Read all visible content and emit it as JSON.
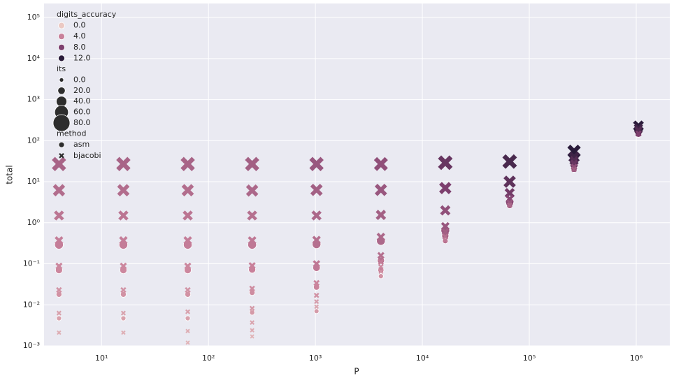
{
  "chart_data": {
    "type": "scatter",
    "x_label": "P",
    "y_label": "total",
    "xscale": "log",
    "yscale": "log",
    "grid": true,
    "xlim": [
      2.9,
      2060000
    ],
    "ylim": [
      0.001,
      220000
    ],
    "xticks": [
      {
        "value": 10,
        "label": "10¹"
      },
      {
        "value": 100,
        "label": "10²"
      },
      {
        "value": 1000,
        "label": "10³"
      },
      {
        "value": 10000,
        "label": "10⁴"
      },
      {
        "value": 100000,
        "label": "10⁵"
      },
      {
        "value": 1000000,
        "label": "10⁶"
      }
    ],
    "yticks": [
      {
        "value": 0.001,
        "label": "10⁻³"
      },
      {
        "value": 0.01,
        "label": "10⁻²"
      },
      {
        "value": 0.1,
        "label": "10⁻¹"
      },
      {
        "value": 1,
        "label": "10⁰"
      },
      {
        "value": 10,
        "label": "10¹"
      },
      {
        "value": 100,
        "label": "10²"
      },
      {
        "value": 1000,
        "label": "10³"
      },
      {
        "value": 10000,
        "label": "10⁴"
      },
      {
        "value": 100000,
        "label": "10⁵"
      }
    ],
    "legend": {
      "position": "upper left",
      "hue_title": "digits_accuracy",
      "hue_levels": [
        {
          "value": 0,
          "label": "0.0"
        },
        {
          "value": 4,
          "label": "4.0"
        },
        {
          "value": 8,
          "label": "8.0"
        },
        {
          "value": 12,
          "label": "12.0"
        }
      ],
      "hue_colors": [
        "#ebc9c3",
        "#c8809a",
        "#7d3f6e",
        "#2a1b3a"
      ],
      "size_title": "its",
      "size_levels": [
        {
          "value": 0,
          "label": "0.0"
        },
        {
          "value": 20,
          "label": "20.0"
        },
        {
          "value": 40,
          "label": "40.0"
        },
        {
          "value": 60,
          "label": "60.0"
        },
        {
          "value": 80,
          "label": "80.0"
        }
      ],
      "style_title": "method"
    },
    "series": [
      {
        "name": "asm",
        "marker": "o",
        "x": [
          4,
          4,
          4,
          4,
          16,
          16,
          16,
          16,
          64,
          64,
          64,
          64,
          256,
          256,
          256,
          256,
          1024,
          1024,
          1024,
          1024,
          4096,
          4096,
          4096,
          4096,
          16384,
          16384,
          16384,
          65536,
          65536,
          262144,
          262144,
          1048576,
          1048576
        ],
        "y": [
          0.29,
          0.07,
          0.018,
          0.0047,
          0.29,
          0.07,
          0.018,
          0.0047,
          0.29,
          0.07,
          0.018,
          0.0047,
          0.29,
          0.072,
          0.02,
          0.0065,
          0.3,
          0.08,
          0.027,
          0.007,
          0.36,
          0.12,
          0.07,
          0.05,
          0.65,
          0.48,
          0.36,
          3.2,
          2.6,
          25,
          20,
          170,
          145
        ],
        "digits_accuracy": [
          4.2,
          3.6,
          3,
          2.2,
          4.2,
          3.6,
          3,
          2.2,
          4.2,
          3.6,
          3,
          2.2,
          4.5,
          4,
          3.3,
          2.6,
          5,
          4.5,
          3.8,
          2.5,
          5.5,
          5,
          4.2,
          3,
          6.5,
          6,
          5,
          7.5,
          6,
          9,
          7,
          10,
          8
        ],
        "its": [
          28,
          18,
          10,
          5,
          28,
          18,
          10,
          5,
          28,
          18,
          10,
          5,
          28,
          18,
          10,
          6,
          28,
          20,
          12,
          4,
          28,
          18,
          11,
          5,
          28,
          18,
          8,
          25,
          10,
          22,
          10,
          25,
          14
        ]
      },
      {
        "name": "bjacobi",
        "marker": "X",
        "x": [
          4,
          4,
          4,
          4,
          4,
          4,
          4,
          4,
          16,
          16,
          16,
          16,
          16,
          16,
          16,
          16,
          64,
          64,
          64,
          64,
          64,
          64,
          64,
          64,
          64,
          256,
          256,
          256,
          256,
          256,
          256,
          256,
          256,
          256,
          256,
          1024,
          1024,
          1024,
          1024,
          1024,
          1024,
          1024,
          1024,
          1024,
          4096,
          4096,
          4096,
          4096,
          4096,
          4096,
          4096,
          4096,
          16384,
          16384,
          16384,
          16384,
          16384,
          16384,
          16384,
          65536,
          65536,
          65536,
          65536,
          65536,
          65536,
          262144,
          262144,
          262144,
          262144,
          262144,
          262144,
          1048576,
          1048576,
          1048576,
          1048576
        ],
        "y": [
          27,
          6.2,
          1.5,
          0.37,
          0.088,
          0.023,
          0.0063,
          0.0021,
          27,
          6.2,
          1.5,
          0.37,
          0.088,
          0.023,
          0.0063,
          0.0021,
          27,
          6.2,
          1.5,
          0.37,
          0.088,
          0.023,
          0.0068,
          0.0023,
          0.0012,
          27,
          6.1,
          1.5,
          0.37,
          0.09,
          0.025,
          0.0082,
          0.0037,
          0.0024,
          0.0017,
          27,
          6.3,
          1.5,
          0.38,
          0.1,
          0.034,
          0.017,
          0.012,
          0.009,
          27,
          6.3,
          1.55,
          0.45,
          0.16,
          0.11,
          0.085,
          0.065,
          29,
          7,
          2,
          0.82,
          0.6,
          0.46,
          0.38,
          31,
          10,
          5.3,
          3.8,
          3.1,
          2.7,
          55,
          40,
          33,
          28,
          23,
          20,
          230,
          200,
          180,
          150
        ],
        "digits_accuracy": [
          5.7,
          5.2,
          4.7,
          4.2,
          3.6,
          3,
          2.2,
          1.5,
          5.7,
          5.2,
          4.7,
          4.2,
          3.6,
          3,
          2.2,
          1.5,
          5.7,
          5.2,
          4.7,
          4.2,
          3.6,
          3,
          2.2,
          1.5,
          1.2,
          6,
          5.5,
          5,
          4.5,
          4,
          3.3,
          2.6,
          2,
          1.6,
          1.2,
          6.5,
          6,
          5.5,
          5,
          4.5,
          3.8,
          3,
          2.5,
          2,
          7,
          6.5,
          6,
          5.5,
          5,
          4.2,
          3.5,
          3,
          9,
          8,
          7,
          6.5,
          6,
          5,
          4.5,
          10.5,
          9.5,
          8.5,
          7.5,
          6.5,
          5.5,
          12,
          11,
          10,
          9,
          7,
          6,
          12,
          11,
          10,
          8
        ],
        "its": [
          68,
          55,
          40,
          30,
          20,
          12,
          6,
          3,
          68,
          55,
          40,
          30,
          20,
          12,
          6,
          3,
          68,
          55,
          40,
          30,
          20,
          12,
          6,
          3,
          2,
          68,
          55,
          40,
          30,
          20,
          12,
          8,
          5,
          3,
          2,
          68,
          55,
          40,
          30,
          22,
          14,
          9,
          6,
          4,
          66,
          55,
          42,
          30,
          20,
          13,
          9,
          6,
          70,
          55,
          42,
          30,
          20,
          13,
          8,
          70,
          55,
          40,
          28,
          18,
          10,
          62,
          48,
          35,
          25,
          16,
          10,
          45,
          35,
          25,
          15
        ]
      }
    ]
  }
}
